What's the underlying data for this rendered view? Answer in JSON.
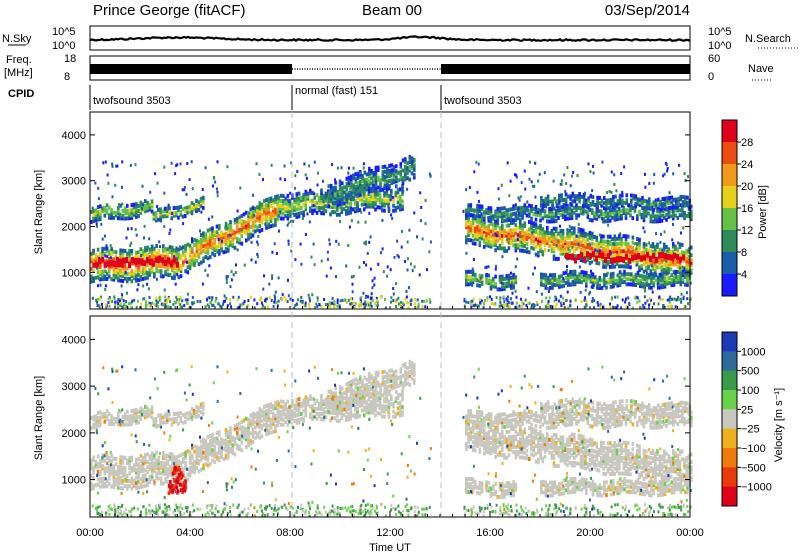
{
  "header": {
    "station": "Prince George (fitACF)",
    "beam": "Beam 00",
    "date": "03/Sep/2014"
  },
  "top_panels": {
    "nsky_label": "N.Sky",
    "nsky_ticks": [
      "10^5",
      "10^0"
    ],
    "nsearch_label": "N.Search",
    "nsearch_ticks": [
      "10^5",
      "10^0"
    ],
    "freq_label": "Freq.",
    "freq_unit": "[MHz]",
    "freq_ticks": [
      "18",
      "8"
    ],
    "nave_label": "Nave",
    "nave_ticks": [
      "60",
      "0"
    ],
    "cpid_label": "CPID"
  },
  "cpid_segments": [
    {
      "label": "twofsound 3503",
      "start_hour": 0,
      "end_hour": 8
    },
    {
      "label": "normal (fast) 151",
      "start_hour": 8,
      "end_hour": 14
    },
    {
      "label": "twofsound 3503",
      "start_hour": 14,
      "end_hour": 24
    }
  ],
  "chart_data": [
    {
      "type": "heatmap",
      "panel": "power",
      "xlabel": "",
      "ylabel": "Slant Range [km]",
      "x_range": [
        0,
        24
      ],
      "y_ticks": [
        "1000",
        "2000",
        "3000",
        "4000"
      ],
      "ylim": [
        200,
        4500
      ],
      "colorbar": {
        "label": "Power [dB]",
        "ticks": [
          "4",
          "8",
          "12",
          "16",
          "20",
          "24",
          "28"
        ],
        "colors": [
          "#1a1aff",
          "#1a5ca8",
          "#2f8a5a",
          "#66c245",
          "#e6d11a",
          "#f09a1a",
          "#ee4a12",
          "#e0001a"
        ]
      }
    },
    {
      "type": "heatmap",
      "panel": "velocity",
      "xlabel": "Time UT",
      "ylabel": "Slant Range [km]",
      "x_range": [
        0,
        24
      ],
      "x_ticks": [
        "00:00",
        "04:00",
        "08:00",
        "12:00",
        "16:00",
        "20:00",
        "00:00"
      ],
      "y_ticks": [
        "1000",
        "2000",
        "3000",
        "4000"
      ],
      "ylim": [
        200,
        4500
      ],
      "colorbar": {
        "label": "Velocity [m s⁻¹]",
        "ticks": [
          "1000",
          "500",
          "100",
          "25",
          "−25",
          "−100",
          "−500",
          "−1000"
        ],
        "colors": [
          "#1a3ab8",
          "#2e6a9a",
          "#3a9a4a",
          "#6ad24a",
          "#c8c8c0",
          "#f0b01a",
          "#f07a0a",
          "#ea3a0a",
          "#e0001a"
        ]
      }
    }
  ]
}
